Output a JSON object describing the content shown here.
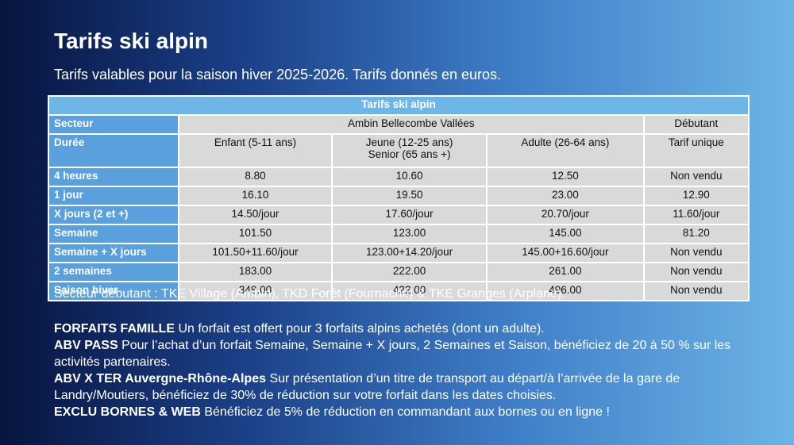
{
  "header": {
    "title": "Tarifs ski alpin",
    "subtitle": "Tarifs valables pour la saison hiver 2025-2026. Tarifs donnés en euros."
  },
  "table": {
    "caption": "Tarifs ski alpin",
    "sector_row": {
      "label": "Secteur",
      "groups": [
        "Ambin Bellecombe Vallées",
        "Débutant"
      ]
    },
    "duration_row": {
      "label": "Durée",
      "columns": [
        [
          "Enfant (5-11 ans)"
        ],
        [
          "Jeune (12-25 ans)",
          "Senior (65 ans +)"
        ],
        [
          "Adulte (26-64 ans)"
        ],
        [
          "Tarif unique"
        ]
      ]
    },
    "rows": [
      [
        "4 heures",
        "8.80",
        "10.60",
        "12.50",
        "Non vendu"
      ],
      [
        "1 jour",
        "16.10",
        "19.50",
        "23.00",
        "12.90"
      ],
      [
        "X jours (2 et +)",
        "14.50/jour",
        "17.60/jour",
        "20.70/jour",
        "11.60/jour"
      ],
      [
        "Semaine",
        "101.50",
        "123.00",
        "145.00",
        "81.20"
      ],
      [
        "Semaine + X jours",
        "101.50+11.60/jour",
        "123.00+14.20/jour",
        "145.00+16.60/jour",
        "Non vendu"
      ],
      [
        "2 semaines",
        "183.00",
        "222.00",
        "261.00",
        "Non vendu"
      ],
      [
        "Saison hiver",
        "348.00",
        "422.00",
        "496.00",
        "Non vendu"
      ]
    ]
  },
  "footnote": "Secteur débutant : TKE Village (Ambin), TKD Forêt (Fournache) & TKE Granges (Arplane).",
  "offers": [
    {
      "title": "FORFAITS FAMILLE",
      "text": "Un forfait est offert pour 3 forfaits alpins achetés (dont un adulte)."
    },
    {
      "title": "ABV PASS",
      "text": "Pour l’achat d’un forfait Semaine, Semaine + X jours, 2 Semaines et Saison, bénéficiez de 20 à 50 % sur les activités partenaires."
    },
    {
      "title": "ABV X TER Auvergne-Rhône-Alpes",
      "text": "Sur présentation d’un titre de transport au départ/à l’arrivée de la gare de Landry/Moutiers, bénéficiez de 30% de réduction sur votre forfait dans les dates choisies."
    },
    {
      "title": "EXCLU BORNES & WEB",
      "text": "Bénéficiez de 5% de réduction en commandant aux bornes ou en ligne !"
    }
  ]
}
